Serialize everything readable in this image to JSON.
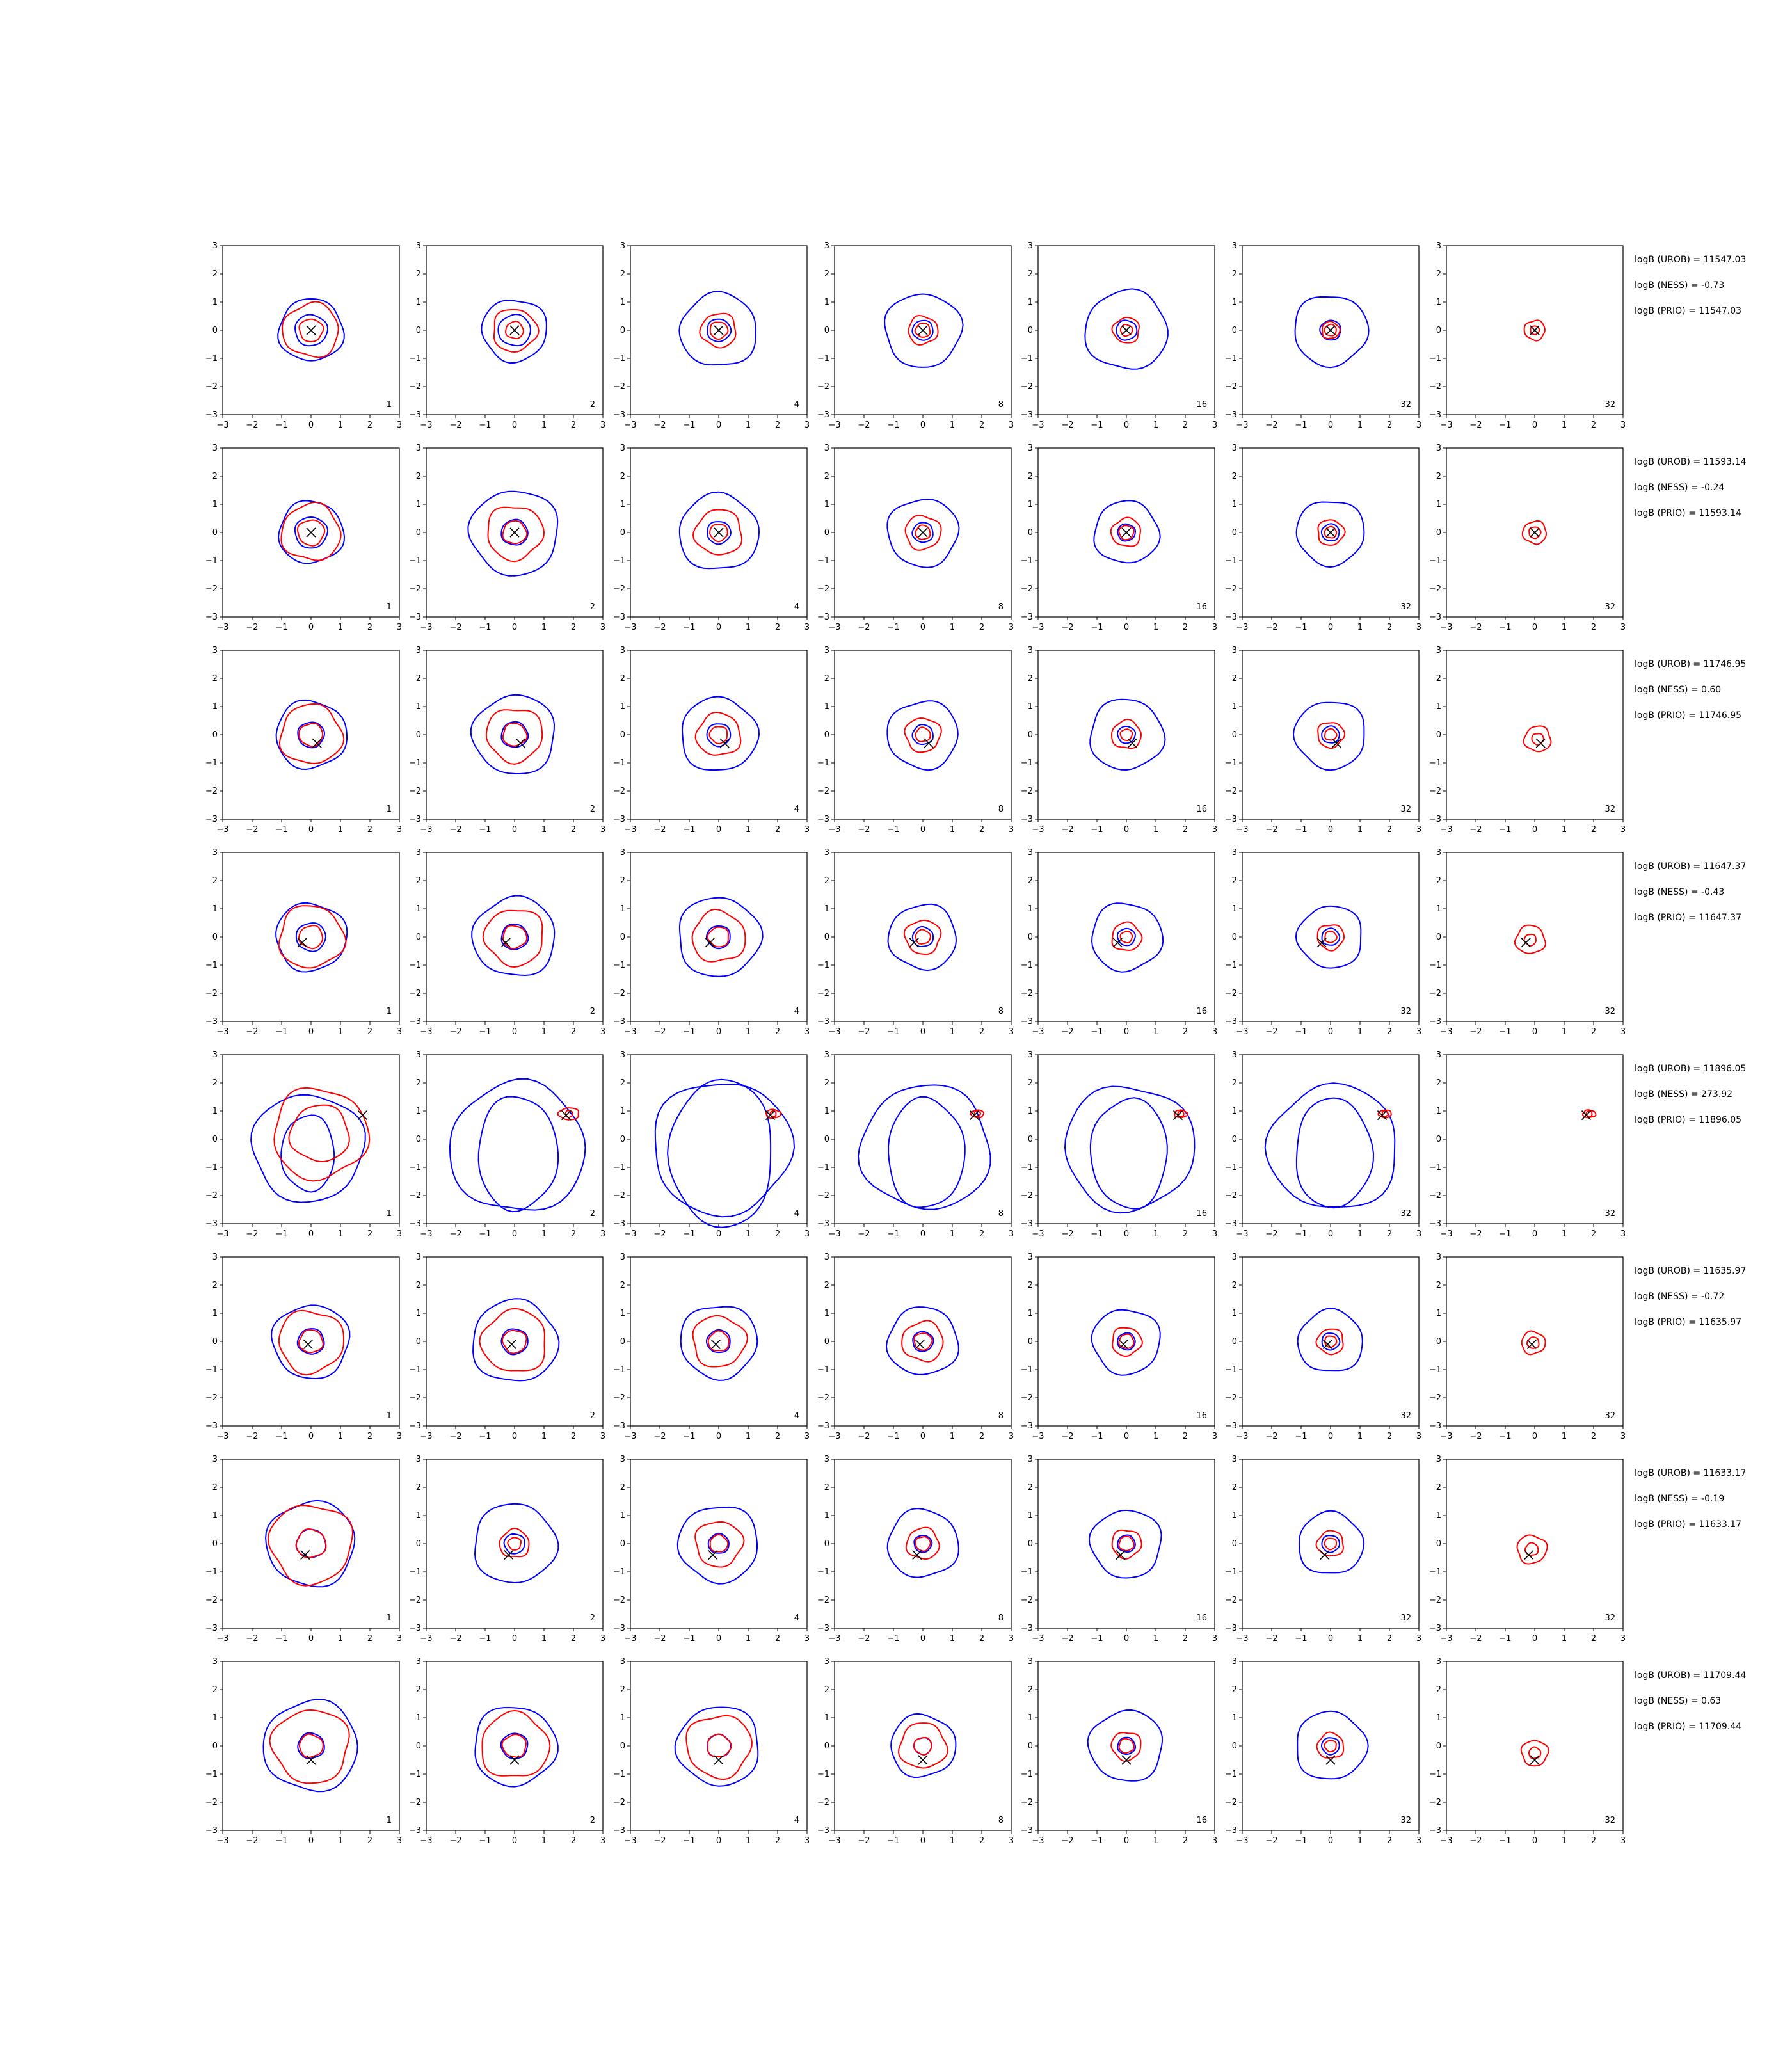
{
  "chart_data": {
    "type": "contour-grid",
    "description_grid": "8 rows x 7 columns of 2D contour panels",
    "xlim": [
      -3,
      3
    ],
    "ylim": [
      -3,
      3
    ],
    "xticks": [
      "−3",
      "−2",
      "−1",
      "0",
      "1",
      "2",
      "3"
    ],
    "yticks": [
      "3",
      "2",
      "1",
      "0",
      "−1",
      "−2",
      "−3"
    ],
    "column_labels": [
      "1",
      "2",
      "4",
      "8",
      "16",
      "32",
      "32"
    ],
    "series_colors": {
      "blue": "#0000ff",
      "red": "#ff0000",
      "marker": "#000000"
    },
    "rows": [
      {
        "marker": [
          0.0,
          0.0
        ],
        "stats": [
          "logB (UROB) = 11547.03",
          "logB (NESS) = -0.73",
          "logB (PRIO) = 11547.03"
        ],
        "blue": [
          [
            1.1,
            0.55
          ],
          [
            1.1,
            0.55
          ],
          [
            1.3,
            0.4
          ],
          [
            1.3,
            0.35
          ],
          [
            1.4,
            0.35
          ],
          [
            1.25,
            0.35
          ],
          [
            0,
            0
          ]
        ],
        "red": [
          [
            0.95,
            0.4
          ],
          [
            0.75,
            0.3
          ],
          [
            0.6,
            0.3
          ],
          [
            0.5,
            0.25
          ],
          [
            0.45,
            0.2
          ],
          [
            0.3,
            0.2
          ],
          [
            0.35,
            0.15
          ]
        ],
        "red_extra": [
          null,
          null,
          null,
          null,
          null,
          null,
          null
        ]
      },
      {
        "marker": [
          0.0,
          0.0
        ],
        "stats": [
          "logB (UROB) = 11593.14",
          "logB (NESS) = -0.24",
          "logB (PRIO) = 11593.14"
        ],
        "blue": [
          [
            1.1,
            0.55
          ],
          [
            1.5,
            0.45
          ],
          [
            1.35,
            0.4
          ],
          [
            1.2,
            0.35
          ],
          [
            1.1,
            0.3
          ],
          [
            1.15,
            0.3
          ],
          [
            0,
            0
          ]
        ],
        "red": [
          [
            1.0,
            0.45
          ],
          [
            0.95,
            0.4
          ],
          [
            0.8,
            0.3
          ],
          [
            0.6,
            0.25
          ],
          [
            0.5,
            0.25
          ],
          [
            0.45,
            0.2
          ],
          [
            0.4,
            0.2
          ]
        ],
        "red_extra": [
          null,
          null,
          null,
          null,
          null,
          null,
          null
        ]
      },
      {
        "marker": [
          0.2,
          -0.3
        ],
        "stats": [
          "logB (UROB) = 11746.95",
          "logB (NESS) = 0.60",
          "logB (PRIO) = 11746.95"
        ],
        "blue": [
          [
            1.2,
            0.45
          ],
          [
            1.4,
            0.45
          ],
          [
            1.3,
            0.4
          ],
          [
            1.2,
            0.35
          ],
          [
            1.25,
            0.3
          ],
          [
            1.2,
            0.3
          ],
          [
            0,
            0
          ]
        ],
        "red": [
          [
            1.05,
            0.4
          ],
          [
            0.95,
            0.4
          ],
          [
            0.75,
            0.3
          ],
          [
            0.6,
            0.25
          ],
          [
            0.5,
            0.2
          ],
          [
            0.45,
            0.2
          ],
          [
            0.45,
            0.2
          ]
        ],
        "red_extra": [
          null,
          null,
          null,
          null,
          null,
          null,
          null
        ]
      },
      {
        "marker": [
          -0.3,
          -0.2
        ],
        "stats": [
          "logB (UROB) = 11647.37",
          "logB (NESS) = -0.43",
          "logB (PRIO) = 11647.37"
        ],
        "blue": [
          [
            1.2,
            0.5
          ],
          [
            1.4,
            0.45
          ],
          [
            1.4,
            0.4
          ],
          [
            1.15,
            0.35
          ],
          [
            1.2,
            0.3
          ],
          [
            1.1,
            0.3
          ],
          [
            0,
            0
          ]
        ],
        "red": [
          [
            1.1,
            0.4
          ],
          [
            1.0,
            0.4
          ],
          [
            0.9,
            0.35
          ],
          [
            0.6,
            0.25
          ],
          [
            0.5,
            0.2
          ],
          [
            0.45,
            0.2
          ],
          [
            0.5,
            0.2
          ]
        ],
        "red_extra": [
          null,
          null,
          null,
          null,
          null,
          null,
          null
        ]
      },
      {
        "marker": [
          1.75,
          0.85
        ],
        "stats": [
          "logB (UROB) = 11896.05",
          "logB (NESS) = 273.92",
          "logB (PRIO) = 11896.05"
        ],
        "blue": [
          [
            1.9,
            0.9
          ],
          [
            2.3,
            1.35
          ],
          [
            2.35,
            1.75
          ],
          [
            2.2,
            1.3
          ],
          [
            2.2,
            1.3
          ],
          [
            2.2,
            1.3
          ],
          [
            0,
            0
          ]
        ],
        "red": [
          [
            1.6,
            1.0
          ],
          [
            0.35,
            0.12
          ],
          [
            0.25,
            0.1
          ],
          [
            0.22,
            0.1
          ],
          [
            0.22,
            0.1
          ],
          [
            0.22,
            0.1
          ],
          [
            0.22,
            0.1
          ]
        ],
        "red_extra": [
          null,
          null,
          null,
          null,
          null,
          null,
          null
        ]
      },
      {
        "marker": [
          -0.1,
          -0.1
        ],
        "stats": [
          "logB (UROB) = 11635.97",
          "logB (NESS) = -0.72",
          "logB (PRIO) = 11635.97"
        ],
        "blue": [
          [
            1.3,
            0.45
          ],
          [
            1.45,
            0.45
          ],
          [
            1.3,
            0.4
          ],
          [
            1.2,
            0.35
          ],
          [
            1.15,
            0.3
          ],
          [
            1.1,
            0.3
          ],
          [
            0,
            0
          ]
        ],
        "red": [
          [
            1.1,
            0.4
          ],
          [
            1.1,
            0.4
          ],
          [
            0.9,
            0.35
          ],
          [
            0.7,
            0.3
          ],
          [
            0.5,
            0.25
          ],
          [
            0.45,
            0.2
          ],
          [
            0.4,
            0.2
          ]
        ],
        "red_extra": [
          null,
          null,
          null,
          null,
          null,
          null,
          null
        ]
      },
      {
        "marker": [
          -0.2,
          -0.4
        ],
        "stats": [
          "logB (UROB) = 11633.17",
          "logB (NESS) = -0.19",
          "logB (PRIO) = 11633.17"
        ],
        "blue": [
          [
            1.5,
            0.5
          ],
          [
            1.4,
            0.35
          ],
          [
            1.35,
            0.35
          ],
          [
            1.2,
            0.3
          ],
          [
            1.2,
            0.3
          ],
          [
            1.1,
            0.3
          ],
          [
            0,
            0
          ]
        ],
        "red": [
          [
            1.4,
            0.5
          ],
          [
            0.5,
            0.22
          ],
          [
            0.8,
            0.3
          ],
          [
            0.55,
            0.25
          ],
          [
            0.5,
            0.25
          ],
          [
            0.45,
            0.2
          ],
          [
            0.5,
            0.22
          ]
        ],
        "red_extra": [
          null,
          null,
          null,
          null,
          null,
          null,
          null
        ]
      },
      {
        "marker": [
          0.0,
          -0.5
        ],
        "stats": [
          "logB (UROB) = 11709.44",
          "logB (NESS) = 0.63",
          "logB (PRIO) = 11709.44"
        ],
        "blue": [
          [
            1.6,
            0.45
          ],
          [
            1.4,
            0.45
          ],
          [
            1.4,
            0.4
          ],
          [
            1.1,
            0.3
          ],
          [
            1.25,
            0.3
          ],
          [
            1.2,
            0.3
          ],
          [
            0,
            0
          ]
        ],
        "red": [
          [
            1.3,
            0.4
          ],
          [
            1.15,
            0.4
          ],
          [
            1.1,
            0.4
          ],
          [
            0.8,
            0.3
          ],
          [
            0.5,
            0.25
          ],
          [
            0.45,
            0.2
          ],
          [
            0.45,
            0.2
          ]
        ],
        "red_extra": [
          null,
          null,
          null,
          null,
          null,
          null,
          null
        ]
      }
    ]
  }
}
